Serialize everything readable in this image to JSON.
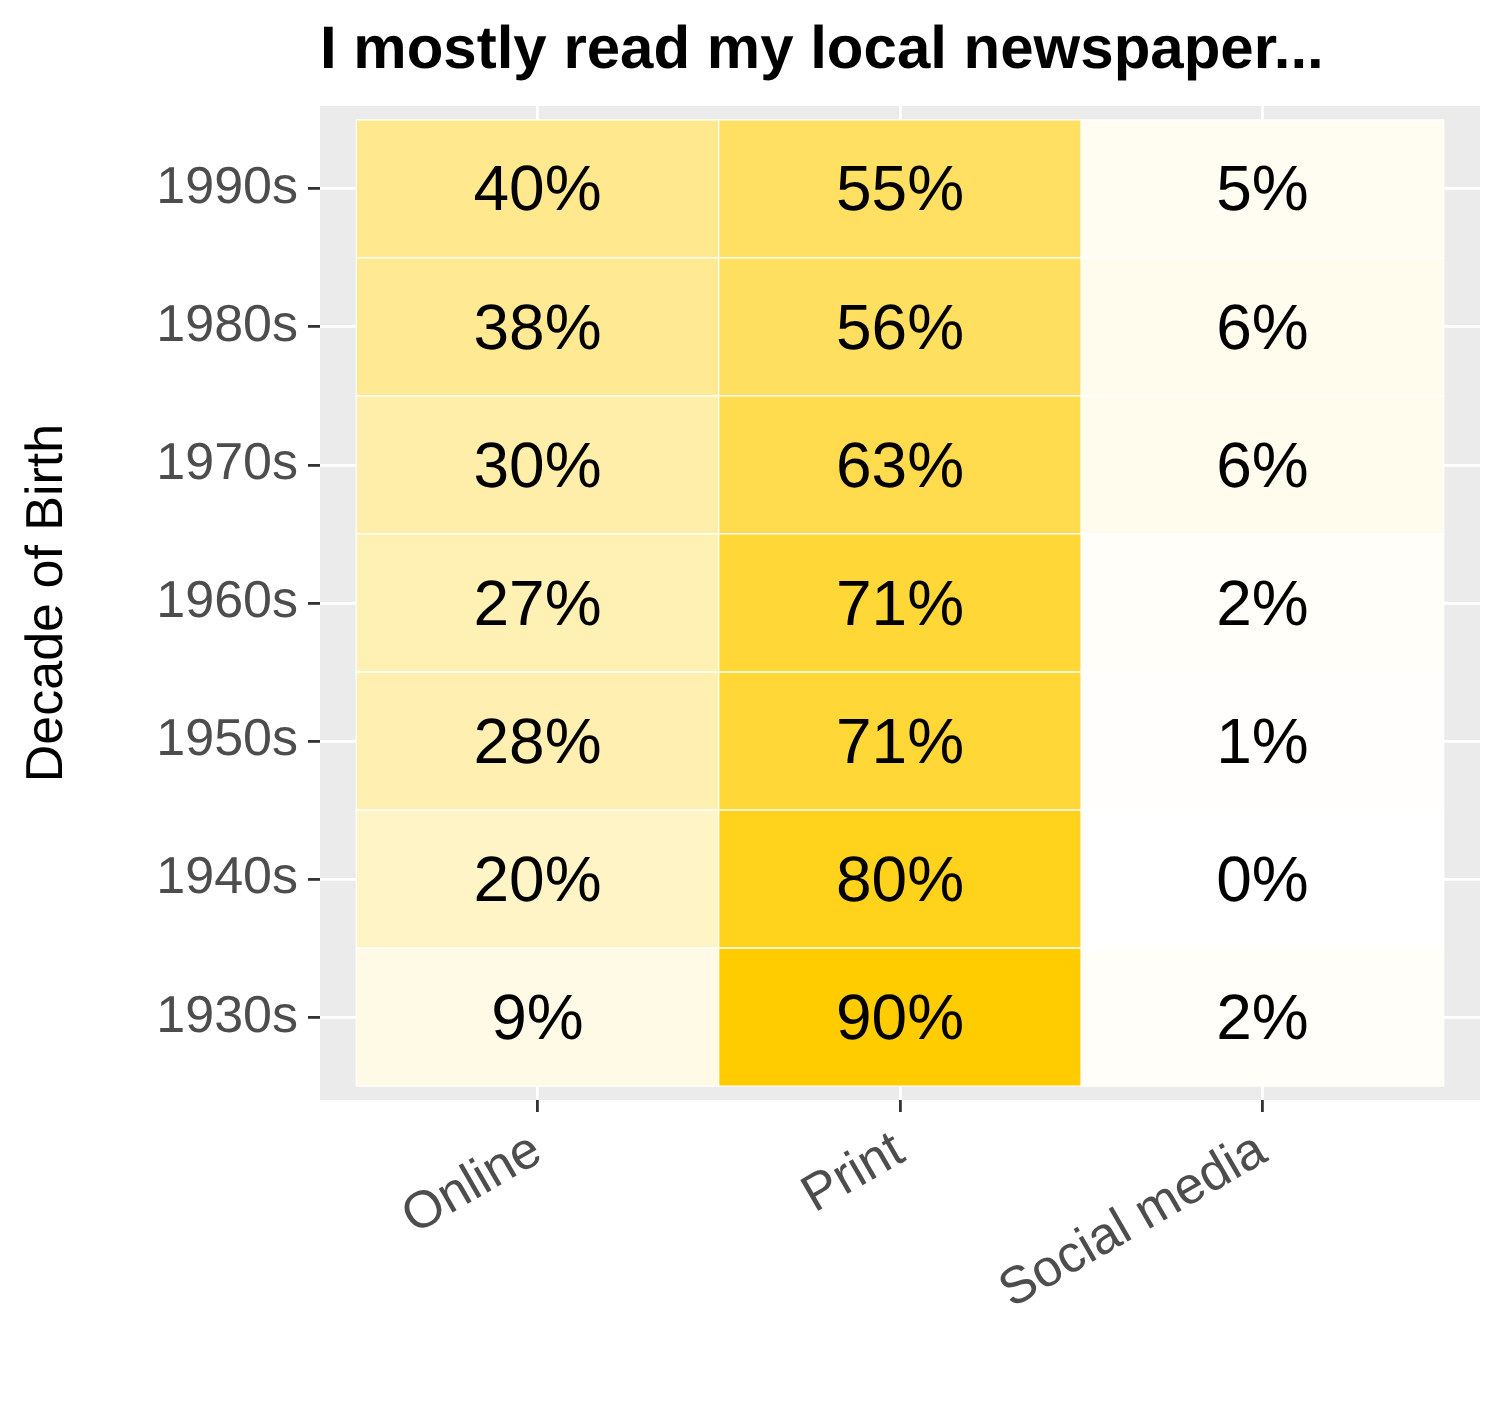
{
  "chart_data": {
    "type": "heatmap",
    "title": "I mostly read my local newspaper...",
    "ylabel": "Decade of Birth",
    "categories": [
      "Online",
      "Print",
      "Social media"
    ],
    "y_categories": [
      "1990s",
      "1980s",
      "1970s",
      "1960s",
      "1950s",
      "1940s",
      "1930s"
    ],
    "cells": [
      [
        40,
        55,
        5
      ],
      [
        38,
        56,
        6
      ],
      [
        30,
        63,
        6
      ],
      [
        27,
        71,
        2
      ],
      [
        28,
        71,
        1
      ],
      [
        20,
        80,
        0
      ],
      [
        9,
        90,
        2
      ]
    ],
    "cell_labels": [
      [
        "40%",
        "55%",
        "5%"
      ],
      [
        "38%",
        "56%",
        "6%"
      ],
      [
        "30%",
        "63%",
        "6%"
      ],
      [
        "27%",
        "71%",
        "2%"
      ],
      [
        "28%",
        "71%",
        "1%"
      ],
      [
        "20%",
        "80%",
        "0%"
      ],
      [
        "9%",
        "90%",
        "2%"
      ]
    ],
    "colors": [
      "#ffffff",
      "#ffcc00"
    ],
    "grid": true
  }
}
